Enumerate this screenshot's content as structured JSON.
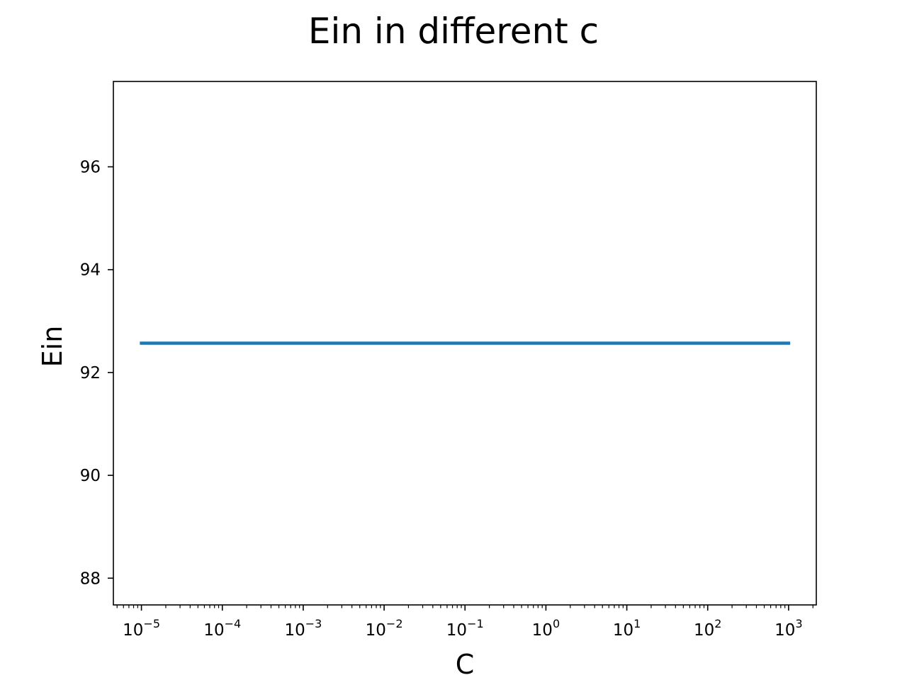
{
  "chart_data": {
    "type": "line",
    "title": "Ein in different c",
    "xlabel": "C",
    "ylabel": "Ein",
    "x_scale": "log",
    "xlim": [
      4.5e-06,
      2200
    ],
    "ylim": [
      87.48,
      97.66
    ],
    "x_ticks": [
      {
        "value": 1e-05,
        "base": "10",
        "exp": "−5"
      },
      {
        "value": 0.0001,
        "base": "10",
        "exp": "−4"
      },
      {
        "value": 0.001,
        "base": "10",
        "exp": "−3"
      },
      {
        "value": 0.01,
        "base": "10",
        "exp": "−2"
      },
      {
        "value": 0.1,
        "base": "10",
        "exp": "−1"
      },
      {
        "value": 1,
        "base": "10",
        "exp": "0"
      },
      {
        "value": 10,
        "base": "10",
        "exp": "1"
      },
      {
        "value": 100,
        "base": "10",
        "exp": "2"
      },
      {
        "value": 1000,
        "base": "10",
        "exp": "3"
      }
    ],
    "y_ticks": [
      {
        "value": 88,
        "label": "88"
      },
      {
        "value": 90,
        "label": "90"
      },
      {
        "value": 92,
        "label": "92"
      },
      {
        "value": 94,
        "label": "94"
      },
      {
        "value": 96,
        "label": "96"
      }
    ],
    "grid": false,
    "series": [
      {
        "color": "#1f77b4",
        "x": [
          1e-05,
          0.0001,
          0.001,
          0.01,
          0.1,
          1,
          10,
          100,
          1000
        ],
        "y": [
          92.57,
          92.57,
          92.57,
          92.57,
          92.57,
          92.57,
          92.57,
          92.57,
          92.57
        ]
      }
    ]
  }
}
